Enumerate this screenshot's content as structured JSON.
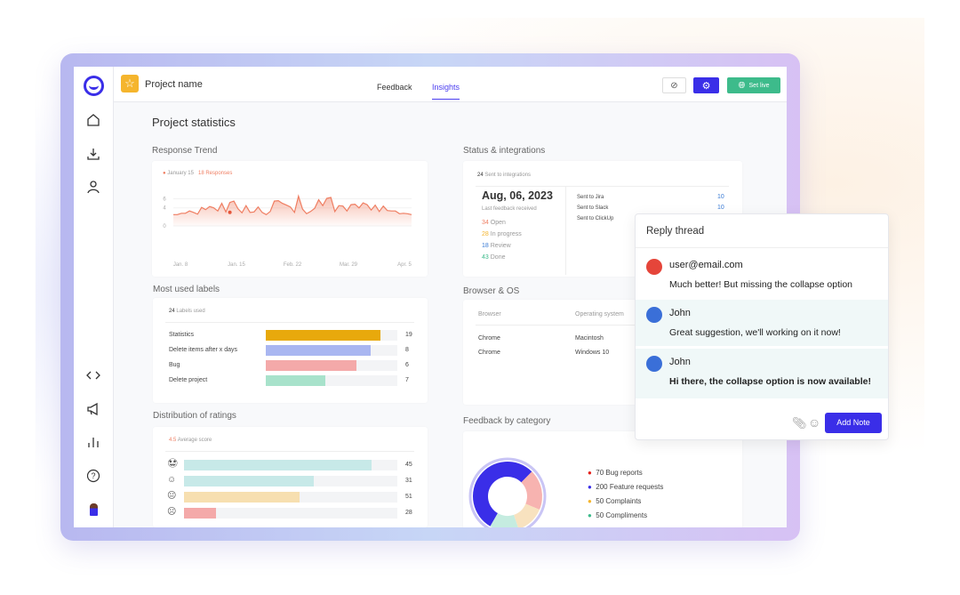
{
  "header": {
    "project_name": "Project name",
    "tabs": [
      {
        "label": "Feedback"
      },
      {
        "label": "Insights",
        "active": true
      }
    ],
    "set_live_label": "Set live",
    "accent": "#3a2ee8",
    "green": "#3dbb8b"
  },
  "sidebar": {
    "icons": [
      "logo-icon",
      "home-icon",
      "download-icon",
      "user-icon",
      "code-icon",
      "megaphone-icon",
      "bar-chart-icon",
      "help-icon",
      "avatar"
    ]
  },
  "page_title": "Project statistics",
  "response_trend": {
    "title": "Response Trend",
    "legend_date": "January 15",
    "legend_count": "18 Responses",
    "chart_data": {
      "type": "area",
      "y_ticks": [
        "6",
        "4",
        "0"
      ],
      "x_ticks": [
        "Jan. 8",
        "Jan. 15",
        "Feb. 22",
        "Mar. 29",
        "Apr. 5"
      ],
      "ylim": [
        0,
        6.5
      ],
      "color": "#ef7e62",
      "values": [
        2.5,
        2.5,
        2.8,
        2.8,
        3.3,
        3,
        2.6,
        4.1,
        3.6,
        4.3,
        4,
        3.3,
        5,
        3.1,
        5.2,
        5.5,
        3.8,
        2.9,
        4.5,
        3,
        3.1,
        4.2,
        3,
        2.5,
        3.2,
        5.5,
        5.6,
        5,
        4.6,
        4.2,
        3,
        6.6,
        3.7,
        2.7,
        3.2,
        3.9,
        5.8,
        4.5,
        6.1,
        6.3,
        3.2,
        4.5,
        4.4,
        3.3,
        4.7,
        4.8,
        4,
        5.1,
        4.7,
        3.5,
        4.6,
        3.2,
        4.4,
        3.4,
        3.3,
        3.3,
        2.7,
        2.8,
        2.7,
        2.5
      ]
    }
  },
  "status": {
    "title": "Status & integrations",
    "sent_count": "24",
    "sent_label": "Sent to integrations",
    "date": "Aug, 06, 2023",
    "date_sub": "Last feedback received",
    "states": [
      {
        "n": "34",
        "label": "Open",
        "color": "#ef7e62"
      },
      {
        "n": "28",
        "label": "In progress",
        "color": "#f5b52d"
      },
      {
        "n": "18",
        "label": "Review",
        "color": "#3a7bd5"
      },
      {
        "n": "43",
        "label": "Done",
        "color": "#3dbb8b"
      }
    ],
    "integrations": [
      {
        "label": "Sent to Jira",
        "value": "10"
      },
      {
        "label": "Sent to Slack",
        "value": "10"
      },
      {
        "label": "Sent to ClickUp",
        "value": ""
      }
    ]
  },
  "labels": {
    "title": "Most used labels",
    "count": "24",
    "count_label": "Labels used",
    "items": [
      {
        "label": "Statistics",
        "value": "19",
        "fill": 0.87,
        "color": "#e8a90c"
      },
      {
        "label": "Delete items after x days",
        "value": "8",
        "fill": 0.8,
        "color": "#a9b6f1"
      },
      {
        "label": "Bug",
        "value": "6",
        "fill": 0.69,
        "color": "#f4a9a9"
      },
      {
        "label": "Delete project",
        "value": "7",
        "fill": 0.45,
        "color": "#a8e2cb"
      }
    ]
  },
  "browser": {
    "title": "Browser & OS",
    "col_browser": "Browser",
    "col_os": "Operating system",
    "rows": [
      {
        "browser": "Chrome",
        "os": "Macintosh"
      },
      {
        "browser": "Chrome",
        "os": "Windows 10"
      }
    ]
  },
  "ratings": {
    "title": "Distribution of ratings",
    "score": "4.5",
    "score_label": "Average score",
    "items": [
      {
        "icon": "star-struck-face-icon",
        "glyph": "🤩",
        "value": "45",
        "fill": 0.88,
        "color": "#c7e9e8"
      },
      {
        "icon": "smile-face-icon",
        "glyph": "☺",
        "value": "31",
        "fill": 0.61,
        "color": "#c7e9e8"
      },
      {
        "icon": "neutral-face-icon",
        "glyph": "😐",
        "value": "51",
        "fill": 0.54,
        "color": "#f7dfb0"
      },
      {
        "icon": "sad-face-icon",
        "glyph": "☹",
        "value": "28",
        "fill": 0.15,
        "color": "#f4a9a9"
      }
    ]
  },
  "category": {
    "title": "Feedback by category",
    "chart_data": {
      "type": "pie",
      "slices": [
        {
          "label": "70 Bug reports",
          "value": 70,
          "color": "#e5201a",
          "fill": "#f7b3b0"
        },
        {
          "label": "200 Feature requests",
          "value": 200,
          "color": "#3a2ee8",
          "fill": "#3a2ee8"
        },
        {
          "label": "50 Complaints",
          "value": 50,
          "color": "#f5b52d",
          "fill": "#f8e2bf"
        },
        {
          "label": "50 Compliments",
          "value": 50,
          "color": "#3dbb8b",
          "fill": "#c5ece0"
        }
      ]
    }
  },
  "reply": {
    "title": "Reply thread",
    "messages": [
      {
        "user": "user@email.com",
        "text": "Much better! But missing the collapse option"
      },
      {
        "user": "John",
        "text": "Great suggestion, we'll working on it now!"
      },
      {
        "user": "John",
        "text": "Hi there, the collapse option is now available!"
      }
    ],
    "add_note": "Add Note"
  }
}
